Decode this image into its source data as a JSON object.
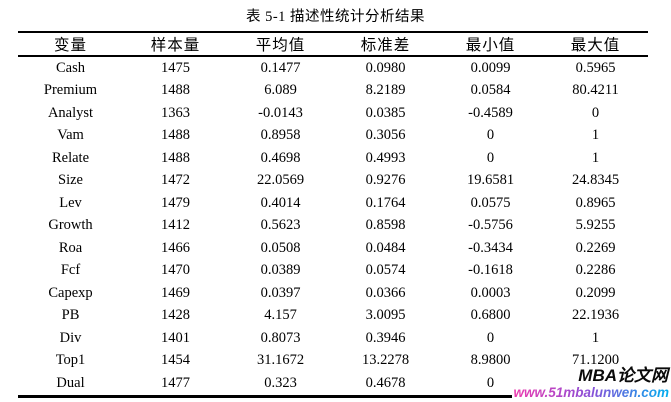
{
  "page": {
    "background": "#ffffff",
    "text_color": "#000000"
  },
  "title": "表 5-1  描述性统计分析结果",
  "table": {
    "headers": [
      "变量",
      "样本量",
      "平均值",
      "标准差",
      "最小值",
      "最大值"
    ],
    "rows": [
      [
        "Cash",
        "1475",
        "0.1477",
        "0.0980",
        "0.0099",
        "0.5965"
      ],
      [
        "Premium",
        "1488",
        "6.089",
        "8.2189",
        "0.0584",
        "80.4211"
      ],
      [
        "Analyst",
        "1363",
        "-0.0143",
        "0.0385",
        "-0.4589",
        "0"
      ],
      [
        "Vam",
        "1488",
        "0.8958",
        "0.3056",
        "0",
        "1"
      ],
      [
        "Relate",
        "1488",
        "0.4698",
        "0.4993",
        "0",
        "1"
      ],
      [
        "Size",
        "1472",
        "22.0569",
        "0.9276",
        "19.6581",
        "24.8345"
      ],
      [
        "Lev",
        "1479",
        "0.4014",
        "0.1764",
        "0.0575",
        "0.8965"
      ],
      [
        "Growth",
        "1412",
        "0.5623",
        "0.8598",
        "-0.5756",
        "5.9255"
      ],
      [
        "Roa",
        "1466",
        "0.0508",
        "0.0484",
        "-0.3434",
        "0.2269"
      ],
      [
        "Fcf",
        "1470",
        "0.0389",
        "0.0574",
        "-0.1618",
        "0.2286"
      ],
      [
        "Capexp",
        "1469",
        "0.0397",
        "0.0366",
        "0.0003",
        "0.2099"
      ],
      [
        "PB",
        "1428",
        "4.157",
        "3.0095",
        "0.6800",
        "22.1936"
      ],
      [
        "Div",
        "1401",
        "0.8073",
        "0.3946",
        "0",
        "1"
      ],
      [
        "Top1",
        "1454",
        "31.1672",
        "13.2278",
        "8.9800",
        "71.1200"
      ],
      [
        "Dual",
        "1477",
        "0.323",
        "0.4678",
        "0",
        ""
      ]
    ]
  },
  "watermark": {
    "brand": "MBA论文网",
    "brand_color": "#0a0a0a",
    "url": "www.51mbalunwen.com",
    "url_gradient": [
      "#ee3aae",
      "#8a4fd8",
      "#00aeef"
    ]
  }
}
